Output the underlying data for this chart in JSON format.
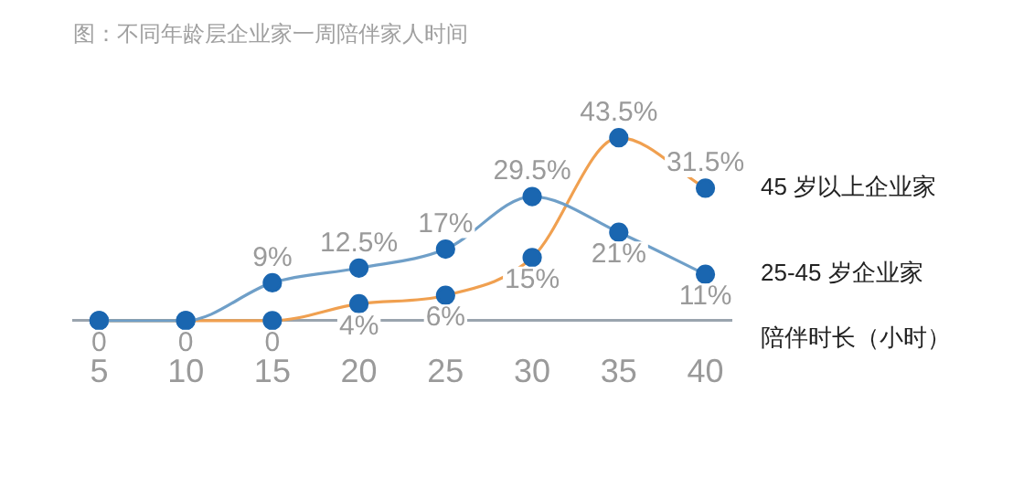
{
  "chart_data": {
    "type": "line",
    "title": "图：不同年龄层企业家一周陪伴家人时间",
    "xlabel": "陪伴时长（小时）",
    "x": [
      5,
      10,
      15,
      20,
      25,
      30,
      35,
      40
    ],
    "xlim": [
      3.5,
      41.5
    ],
    "xticks": [
      5,
      10,
      15,
      20,
      25,
      30,
      35,
      40
    ],
    "series": [
      {
        "name": "25-45 岁企业家",
        "color": "#6f9fc8",
        "colors": [
          "#1a66b0",
          "#1a66b0",
          "#1a66b0",
          "#1a66b0",
          "#1a66b0",
          "#1a66b0",
          "#1a66b0",
          "#1a66b0"
        ],
        "values": [
          0,
          0,
          9,
          12.5,
          17,
          29.5,
          21,
          11
        ],
        "value_labels": [
          "0",
          "0",
          "9%",
          "12.5%",
          "17%",
          "29.5%",
          "21%",
          "11%"
        ]
      },
      {
        "name": "45 岁以上企业家",
        "color": "#f0a050",
        "colors": [
          "#1a66b0",
          "#1a66b0",
          "#1a66b0",
          "#1a66b0",
          "#1a66b0",
          "#1a66b0",
          "#1a66b0",
          "#1a66b0"
        ],
        "values": [
          0,
          0,
          0,
          4,
          6,
          15,
          43.5,
          31.5
        ],
        "value_labels": [
          null,
          null,
          "0",
          "4%",
          "6%",
          "15%",
          "43.5%",
          "31.5%"
        ]
      }
    ],
    "grid": false,
    "legend": false,
    "marker": "circle"
  }
}
